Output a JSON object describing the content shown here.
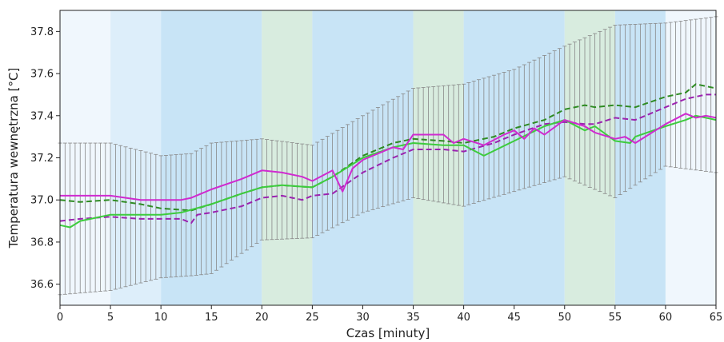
{
  "chart_data": {
    "type": "line",
    "title": "",
    "xlabel": "Czas [minuty]",
    "ylabel": "Temperatura wewnętrzna [°C]",
    "xlim": [
      0,
      65
    ],
    "ylim": [
      36.5,
      37.9
    ],
    "x_ticks": [
      0,
      5,
      10,
      15,
      20,
      25,
      30,
      35,
      40,
      45,
      50,
      55,
      60,
      65
    ],
    "x_tick_labels": [
      "0",
      "5",
      "10",
      "15",
      "20",
      "25",
      "30",
      "35",
      "40",
      "45",
      "50",
      "55",
      "60",
      "65"
    ],
    "y_ticks": [
      36.6,
      36.8,
      37.0,
      37.2,
      37.4,
      37.6,
      37.8
    ],
    "y_tick_labels": [
      "36.6",
      "36.8",
      "37.0",
      "37.2",
      "37.4",
      "37.6",
      "37.8"
    ],
    "grid": false,
    "legend": "none",
    "phase_bands": [
      {
        "x0": 0,
        "x1": 5,
        "color": "#f0f7fd"
      },
      {
        "x0": 5,
        "x1": 10,
        "color": "#ddeefa"
      },
      {
        "x0": 10,
        "x1": 20,
        "color": "#c8e4f6"
      },
      {
        "x0": 20,
        "x1": 25,
        "color": "#d8ecdf"
      },
      {
        "x0": 25,
        "x1": 35,
        "color": "#c8e4f6"
      },
      {
        "x0": 35,
        "x1": 40,
        "color": "#d8ecdf"
      },
      {
        "x0": 40,
        "x1": 50,
        "color": "#c8e4f6"
      },
      {
        "x0": 50,
        "x1": 55,
        "color": "#d8ecdf"
      },
      {
        "x0": 55,
        "x1": 60,
        "color": "#c8e4f6"
      },
      {
        "x0": 60,
        "x1": 65,
        "color": "#f0f7fd"
      }
    ],
    "errorbar_mean": {
      "x": [
        0,
        5,
        10,
        13,
        15,
        20,
        25,
        30,
        35,
        40,
        45,
        50,
        55,
        60,
        65
      ],
      "mean": [
        36.91,
        36.92,
        36.92,
        36.93,
        36.96,
        37.05,
        37.04,
        37.17,
        37.27,
        37.26,
        37.33,
        37.42,
        37.42,
        37.5,
        37.5
      ],
      "sd": [
        0.36,
        0.35,
        0.29,
        0.29,
        0.31,
        0.24,
        0.22,
        0.23,
        0.26,
        0.29,
        0.29,
        0.31,
        0.41,
        0.34,
        0.37
      ],
      "step": 0.5,
      "color": "#888888"
    },
    "series": [
      {
        "color": "#2e8b22",
        "style": "dashed",
        "x": [
          0,
          2,
          5,
          8,
          10,
          13,
          15,
          18,
          20,
          22,
          25,
          27,
          30,
          33,
          35,
          38,
          40,
          43,
          45,
          48,
          50,
          52,
          53,
          55,
          57,
          60,
          62,
          63,
          64,
          65
        ],
        "values": [
          37.0,
          36.99,
          37.0,
          36.98,
          36.96,
          36.95,
          36.98,
          37.03,
          37.06,
          37.07,
          37.06,
          37.11,
          37.21,
          37.27,
          37.29,
          37.28,
          37.27,
          37.3,
          37.34,
          37.38,
          37.43,
          37.45,
          37.44,
          37.45,
          37.44,
          37.49,
          37.51,
          37.55,
          37.54,
          37.53
        ]
      },
      {
        "color": "#9b22b0",
        "style": "dashed",
        "x": [
          0,
          2,
          5,
          8,
          10,
          12,
          13,
          13.6,
          15,
          18,
          20,
          22,
          24,
          25,
          27,
          30,
          33,
          35,
          38,
          40,
          43,
          45,
          48,
          50,
          52,
          53,
          55,
          57,
          60,
          62,
          64,
          65
        ],
        "values": [
          36.9,
          36.91,
          36.92,
          36.91,
          36.91,
          36.91,
          36.89,
          36.93,
          36.94,
          36.97,
          37.01,
          37.02,
          37.0,
          37.02,
          37.03,
          37.13,
          37.2,
          37.24,
          37.24,
          37.23,
          37.27,
          37.31,
          37.36,
          37.37,
          37.36,
          37.36,
          37.39,
          37.38,
          37.44,
          37.48,
          37.5,
          37.5
        ]
      },
      {
        "color": "#3dcc3d",
        "style": "solid",
        "x": [
          0,
          1,
          2,
          5,
          8,
          10,
          12,
          15,
          18,
          20,
          22,
          25,
          27,
          30,
          33,
          35,
          38,
          40,
          42,
          45,
          48,
          50,
          52,
          53,
          55,
          56.5,
          57,
          60,
          62,
          63,
          64,
          65
        ],
        "values": [
          36.88,
          36.87,
          36.9,
          36.93,
          36.93,
          36.93,
          36.94,
          36.98,
          37.03,
          37.06,
          37.07,
          37.06,
          37.11,
          37.2,
          37.25,
          37.27,
          37.26,
          37.26,
          37.21,
          37.28,
          37.35,
          37.38,
          37.33,
          37.35,
          37.28,
          37.27,
          37.3,
          37.35,
          37.38,
          37.4,
          37.39,
          37.38
        ]
      },
      {
        "color": "#d02ad0",
        "style": "solid",
        "x": [
          0,
          2,
          5,
          8,
          10,
          12,
          13,
          15,
          18,
          20,
          22,
          24,
          25,
          27,
          28,
          29,
          30,
          33,
          34,
          35,
          38,
          39,
          40,
          42,
          44,
          45,
          46,
          47,
          48,
          50,
          52,
          53,
          55,
          56,
          57,
          60,
          62,
          63,
          64,
          65
        ],
        "values": [
          37.02,
          37.02,
          37.02,
          37.0,
          37.0,
          37.0,
          37.01,
          37.05,
          37.1,
          37.14,
          37.13,
          37.11,
          37.09,
          37.14,
          37.04,
          37.15,
          37.19,
          37.25,
          37.24,
          37.31,
          37.31,
          37.27,
          37.29,
          37.26,
          37.31,
          37.33,
          37.29,
          37.34,
          37.31,
          37.38,
          37.35,
          37.32,
          37.29,
          37.3,
          37.27,
          37.36,
          37.41,
          37.39,
          37.4,
          37.39
        ]
      }
    ]
  }
}
